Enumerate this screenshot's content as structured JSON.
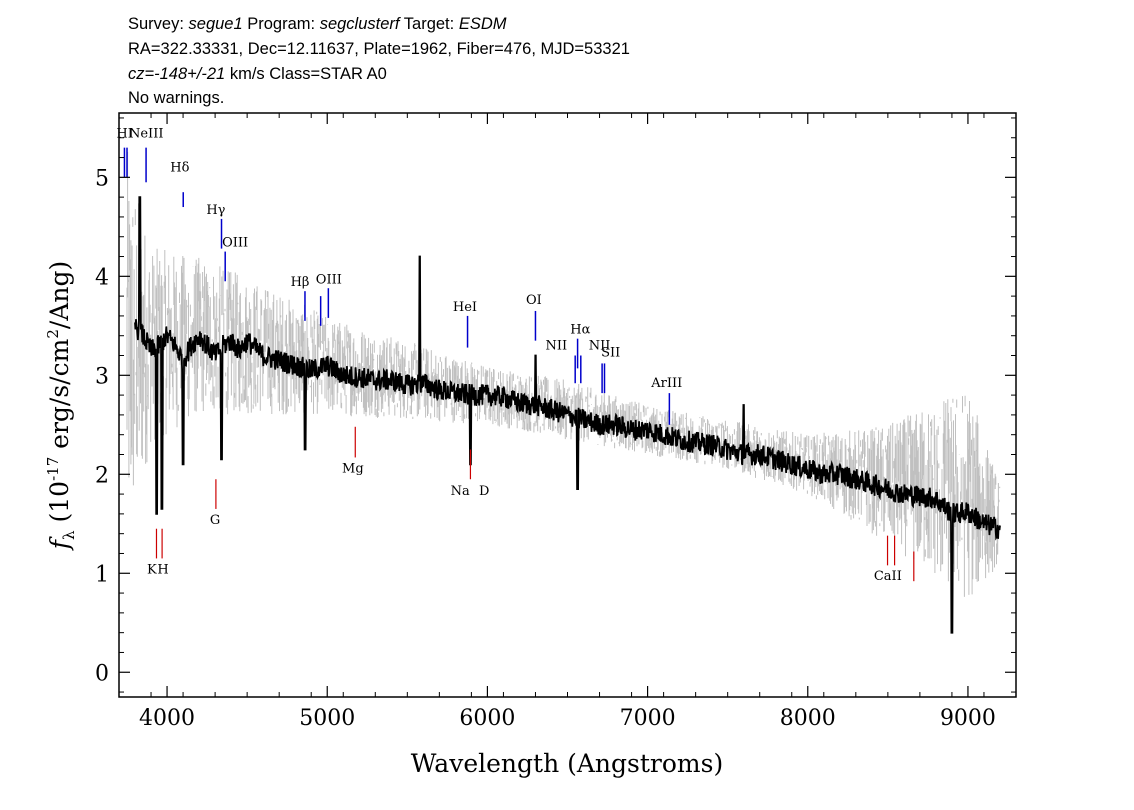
{
  "header": {
    "line1": {
      "survey_label": "Survey: ",
      "survey": "segue1",
      "program_label": " Program: ",
      "program": "segclusterf",
      "target_label": " Target: ",
      "target": "ESDM"
    },
    "line2": "RA=322.33331, Dec=12.11637, Plate=1962, Fiber=476, MJD=53321",
    "line3": {
      "cz_label": "cz=",
      "cz": "-148+/-21",
      "rest": " km/s Class=STAR A0"
    },
    "line4": "No warnings."
  },
  "colors": {
    "spectrum": "#000000",
    "noise": "#c0c0c0",
    "emission_line": "#0000cc",
    "absorption_line": "#cc0000"
  },
  "chart_data": {
    "type": "line",
    "xlabel": "Wavelength (Angstroms)",
    "ylabel": "f_λ (10^-17 erg/s/cm^2/Ang)",
    "xlim": [
      3700,
      9300
    ],
    "ylim": [
      -0.25,
      5.65
    ],
    "x_ticks": [
      4000,
      5000,
      6000,
      7000,
      8000,
      9000
    ],
    "y_ticks": [
      0,
      1,
      2,
      3,
      4,
      5
    ],
    "grid": false,
    "series": [
      {
        "role": "flux",
        "color": "#000000",
        "x": [
          3800,
          3850,
          3900,
          3950,
          4000,
          4050,
          4100,
          4150,
          4200,
          4250,
          4300,
          4350,
          4400,
          4450,
          4500,
          4600,
          4700,
          4800,
          4900,
          5000,
          5100,
          5200,
          5300,
          5400,
          5500,
          5600,
          5700,
          5800,
          5900,
          6000,
          6100,
          6200,
          6300,
          6400,
          6500,
          6600,
          6700,
          6800,
          6900,
          7000,
          7100,
          7200,
          7300,
          7400,
          7500,
          7600,
          7700,
          7800,
          7900,
          8000,
          8100,
          8200,
          8300,
          8400,
          8500,
          8600,
          8700,
          8800,
          8900,
          9000,
          9100,
          9200
        ],
        "y": [
          3.5,
          3.4,
          3.25,
          3.3,
          3.4,
          3.3,
          3.15,
          3.3,
          3.4,
          3.3,
          3.2,
          3.3,
          3.35,
          3.25,
          3.35,
          3.2,
          3.15,
          3.1,
          3.05,
          3.1,
          3.0,
          2.98,
          2.95,
          2.95,
          2.9,
          2.92,
          2.85,
          2.82,
          2.8,
          2.8,
          2.78,
          2.72,
          2.7,
          2.65,
          2.6,
          2.55,
          2.5,
          2.5,
          2.45,
          2.45,
          2.4,
          2.35,
          2.32,
          2.3,
          2.25,
          2.2,
          2.2,
          2.15,
          2.1,
          2.05,
          2.0,
          2.0,
          1.95,
          1.9,
          1.85,
          1.8,
          1.78,
          1.75,
          1.6,
          1.62,
          1.5,
          1.45
        ]
      }
    ],
    "absorption_dips": [
      {
        "x": 3934,
        "y": 1.6
      },
      {
        "x": 3968,
        "y": 1.65
      },
      {
        "x": 4101,
        "y": 2.1
      },
      {
        "x": 4340,
        "y": 2.15
      },
      {
        "x": 4861,
        "y": 2.25
      },
      {
        "x": 5895,
        "y": 2.1
      },
      {
        "x": 6563,
        "y": 1.85
      },
      {
        "x": 8900,
        "y": 0.4
      }
    ],
    "emission_spikes": [
      {
        "x": 3830,
        "y": 4.8
      },
      {
        "x": 5577,
        "y": 4.2
      },
      {
        "x": 6300,
        "y": 3.2
      },
      {
        "x": 7600,
        "y": 2.7
      }
    ],
    "noise_band": {
      "x": [
        3750,
        3900,
        4200,
        4500,
        5000,
        5500,
        6000,
        6500,
        7000,
        7500,
        8000,
        8500,
        9000,
        9200
      ],
      "upper": [
        5.3,
        4.3,
        4.2,
        4.0,
        3.6,
        3.35,
        3.1,
        2.95,
        2.7,
        2.55,
        2.4,
        2.5,
        2.9,
        1.9
      ],
      "lower": [
        1.2,
        2.3,
        2.6,
        2.6,
        2.6,
        2.55,
        2.5,
        2.35,
        2.2,
        2.05,
        1.8,
        1.3,
        0.7,
        1.1
      ]
    },
    "emission_lines": [
      {
        "label": "HI",
        "x": 3734,
        "y_top": 5.3,
        "y_bot": 5.0
      },
      {
        "label": "HI",
        "x": 3750,
        "y_top": 5.3,
        "y_bot": 5.0
      },
      {
        "label": "NeIII",
        "x": 3869,
        "y_top": 5.3,
        "y_bot": 4.95
      },
      {
        "label": "Hδ",
        "x": 4101,
        "y_top": 4.85,
        "y_bot": 4.7
      },
      {
        "label": "Hγ",
        "x": 4340,
        "y_top": 4.58,
        "y_bot": 4.28
      },
      {
        "label": "OIII",
        "x": 4363,
        "y_top": 4.25,
        "y_bot": 3.95
      },
      {
        "label": "Hβ",
        "x": 4861,
        "y_top": 3.85,
        "y_bot": 3.55
      },
      {
        "label": "OIII",
        "x": 4959,
        "y_top": 3.8,
        "y_bot": 3.5
      },
      {
        "label": "OIII",
        "x": 5007,
        "y_top": 3.88,
        "y_bot": 3.58
      },
      {
        "label": "HeI",
        "x": 5876,
        "y_top": 3.6,
        "y_bot": 3.28
      },
      {
        "label": "OI",
        "x": 6300,
        "y_top": 3.65,
        "y_bot": 3.35
      },
      {
        "label": "NII",
        "x": 6548,
        "y_top": 3.2,
        "y_bot": 2.92
      },
      {
        "label": "Hα",
        "x": 6563,
        "y_top": 3.37,
        "y_bot": 3.07
      },
      {
        "label": "NII",
        "x": 6583,
        "y_top": 3.2,
        "y_bot": 2.92
      },
      {
        "label": "SII",
        "x": 6716,
        "y_top": 3.12,
        "y_bot": 2.82
      },
      {
        "label": "SII",
        "x": 6731,
        "y_top": 3.12,
        "y_bot": 2.82
      },
      {
        "label": "ArIII",
        "x": 7136,
        "y_top": 2.82,
        "y_bot": 2.5
      }
    ],
    "emission_labels": [
      {
        "text": "HI",
        "x": 3735,
        "y": 5.4
      },
      {
        "text": "NeIII",
        "x": 3870,
        "y": 5.4
      },
      {
        "text": "Hδ",
        "x": 4080,
        "y": 5.06
      },
      {
        "text": "Hγ",
        "x": 4305,
        "y": 4.63
      },
      {
        "text": "OIII",
        "x": 4425,
        "y": 4.3
      },
      {
        "text": "Hβ",
        "x": 4830,
        "y": 3.9
      },
      {
        "text": "OIII",
        "x": 5010,
        "y": 3.93
      },
      {
        "text": "HeI",
        "x": 5860,
        "y": 3.65
      },
      {
        "text": "OI",
        "x": 6290,
        "y": 3.72
      },
      {
        "text": "Hα",
        "x": 6580,
        "y": 3.42
      },
      {
        "text": "NII",
        "x": 6430,
        "y": 3.26
      },
      {
        "text": "NII",
        "x": 6700,
        "y": 3.26
      },
      {
        "text": "SII",
        "x": 6770,
        "y": 3.19
      },
      {
        "text": "ArIII",
        "x": 7120,
        "y": 2.88
      }
    ],
    "absorption_lines": [
      {
        "label": "K",
        "x": 3934,
        "y_top": 1.45,
        "y_bot": 1.15
      },
      {
        "label": "H",
        "x": 3969,
        "y_top": 1.45,
        "y_bot": 1.15
      },
      {
        "label": "G",
        "x": 4305,
        "y_top": 1.95,
        "y_bot": 1.65
      },
      {
        "label": "Mg",
        "x": 5175,
        "y_top": 2.48,
        "y_bot": 2.17
      },
      {
        "label": "Na D",
        "x": 5894,
        "y_top": 2.25,
        "y_bot": 1.95
      },
      {
        "label": "CaII",
        "x": 8498,
        "y_top": 1.38,
        "y_bot": 1.08
      },
      {
        "label": "CaII",
        "x": 8542,
        "y_top": 1.38,
        "y_bot": 1.08
      },
      {
        "label": "CaII",
        "x": 8662,
        "y_top": 1.22,
        "y_bot": 0.92
      }
    ],
    "absorption_labels": [
      {
        "text": "K",
        "x": 3905,
        "y": 1.0
      },
      {
        "text": "H",
        "x": 3975,
        "y": 1.0
      },
      {
        "text": "G",
        "x": 4300,
        "y": 1.5
      },
      {
        "text": "Mg",
        "x": 5160,
        "y": 2.02
      },
      {
        "text": "Na",
        "x": 5830,
        "y": 1.79
      },
      {
        "text": "D",
        "x": 5980,
        "y": 1.79
      },
      {
        "text": "CaII",
        "x": 8500,
        "y": 0.93
      }
    ]
  }
}
